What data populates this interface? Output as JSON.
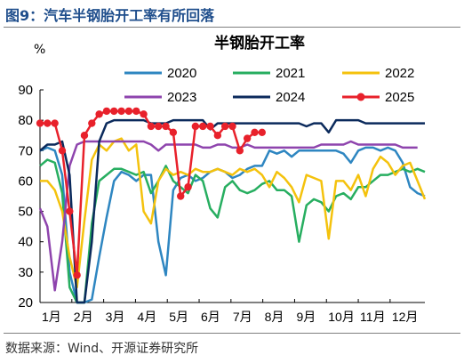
{
  "figure_title": "图9：汽车半钢胎开工率有所回落",
  "source": "数据来源：Wind、开源证券研究所",
  "chart_data": {
    "type": "line",
    "title": "半钢胎开工率",
    "ylabel": "%",
    "ylim": [
      20,
      90
    ],
    "yticks": [
      20,
      30,
      40,
      50,
      60,
      70,
      80,
      90
    ],
    "xlim": [
      1,
      53
    ],
    "xticks": [
      {
        "x": 1,
        "label": "1月"
      },
      {
        "x": 5.3,
        "label": "2月"
      },
      {
        "x": 9.6,
        "label": "3月"
      },
      {
        "x": 13.9,
        "label": "4月"
      },
      {
        "x": 18.2,
        "label": "5月"
      },
      {
        "x": 22.5,
        "label": "6月"
      },
      {
        "x": 26.8,
        "label": "7月"
      },
      {
        "x": 31.1,
        "label": "8月"
      },
      {
        "x": 35.4,
        "label": "9月"
      },
      {
        "x": 39.7,
        "label": "10月"
      },
      {
        "x": 44,
        "label": "11月"
      },
      {
        "x": 48.3,
        "label": "12月"
      }
    ],
    "grid": false,
    "legend_position": "top",
    "series": [
      {
        "name": "2020",
        "color": "#2E86C1",
        "marker": false,
        "x": [
          1,
          2,
          3,
          4,
          5,
          6,
          7,
          8,
          9,
          10,
          11,
          12,
          13,
          14,
          15,
          16,
          17,
          18,
          19,
          20,
          21,
          22,
          23,
          24,
          25,
          26,
          27,
          28,
          29,
          30,
          31,
          32,
          33,
          34,
          35,
          36,
          37,
          38,
          39,
          40,
          41,
          42,
          43,
          44,
          45,
          46,
          47,
          48,
          49,
          50,
          51,
          52,
          53
        ],
        "y": [
          70,
          71,
          70,
          62,
          30,
          20,
          20,
          21,
          35,
          48,
          60,
          63,
          62,
          60,
          62,
          62,
          40,
          29,
          57,
          61,
          62,
          60,
          61,
          63,
          64,
          63,
          61,
          62,
          64,
          65,
          65,
          70,
          69,
          70,
          68,
          70,
          70,
          70,
          70,
          70,
          70,
          69,
          66,
          70,
          71,
          71,
          70,
          71,
          70,
          66,
          58,
          56,
          55
        ]
      },
      {
        "name": "2021",
        "color": "#27AE60",
        "marker": false,
        "x": [
          1,
          2,
          3,
          4,
          5,
          6,
          7,
          8,
          9,
          10,
          11,
          12,
          13,
          14,
          15,
          16,
          17,
          18,
          19,
          20,
          21,
          22,
          23,
          24,
          25,
          26,
          27,
          28,
          29,
          30,
          31,
          32,
          33,
          34,
          35,
          36,
          37,
          38,
          39,
          40,
          41,
          42,
          43,
          44,
          45,
          46,
          47,
          48,
          49,
          50,
          51,
          52,
          53
        ],
        "y": [
          65,
          67,
          66,
          56,
          25,
          20,
          20,
          46,
          60,
          62,
          64,
          64,
          63,
          62,
          63,
          56,
          60,
          65,
          60,
          58,
          56,
          62,
          60,
          51,
          48,
          58,
          60,
          57,
          56,
          57,
          59,
          60,
          57,
          57,
          55,
          40,
          52,
          54,
          53,
          50,
          55,
          56,
          54,
          58,
          58,
          60,
          62,
          62,
          63,
          64,
          63,
          64,
          63
        ]
      },
      {
        "name": "2022",
        "color": "#F4C20D",
        "marker": false,
        "x": [
          1,
          2,
          3,
          4,
          5,
          6,
          7,
          8,
          9,
          10,
          11,
          12,
          13,
          14,
          15,
          16,
          17,
          18,
          19,
          20,
          21,
          22,
          23,
          24,
          25,
          26,
          27,
          28,
          29,
          30,
          31,
          32,
          33,
          34,
          35,
          36,
          37,
          38,
          39,
          40,
          41,
          42,
          43,
          44,
          45,
          46,
          47,
          48,
          49,
          50,
          51,
          52,
          53
        ],
        "y": [
          60,
          60,
          57,
          50,
          35,
          25,
          47,
          67,
          72,
          70,
          73,
          74,
          70,
          72,
          50,
          46,
          60,
          64,
          62,
          63,
          62,
          64,
          63,
          63,
          64,
          63,
          62,
          64,
          63,
          64,
          62,
          58,
          63,
          61,
          58,
          53,
          62,
          61,
          60,
          41,
          60,
          60,
          57,
          62,
          55,
          64,
          68,
          66,
          62,
          65,
          66,
          60,
          54
        ]
      },
      {
        "name": "2023",
        "color": "#8E44AD",
        "marker": false,
        "x": [
          1,
          2,
          3,
          4,
          5,
          6,
          7,
          8,
          9,
          10,
          11,
          12,
          13,
          14,
          15,
          16,
          17,
          18,
          19,
          20,
          21,
          22,
          23,
          24,
          25,
          26,
          27,
          28,
          29,
          30,
          31,
          32,
          33,
          34,
          35,
          36,
          37,
          38,
          39,
          40,
          41,
          42,
          43,
          44,
          45,
          46,
          47,
          48,
          49,
          50,
          51,
          52
        ],
        "y": [
          51,
          45,
          24,
          40,
          65,
          72,
          73,
          73,
          73,
          73,
          73,
          73,
          73,
          73,
          73,
          72,
          70,
          72,
          72,
          72,
          72,
          72,
          71,
          71,
          72,
          72,
          71,
          71,
          72,
          71,
          71,
          71,
          71,
          71,
          71,
          71,
          71,
          71,
          72,
          72,
          72,
          72,
          73,
          72,
          72,
          72,
          72,
          72,
          72,
          71,
          71,
          71
        ]
      },
      {
        "name": "2024",
        "color": "#0B2A5C",
        "marker": false,
        "x": [
          1,
          2,
          3,
          4,
          5,
          6,
          7,
          8,
          9,
          10,
          11,
          12,
          13,
          14,
          15,
          16,
          17,
          18,
          19,
          20,
          21,
          22,
          23,
          24,
          25,
          26,
          27,
          28,
          29,
          30,
          31,
          32,
          33,
          34,
          35,
          36,
          37,
          38,
          39,
          40,
          41,
          42,
          43,
          44,
          45,
          46,
          47,
          48,
          49,
          50,
          51,
          52,
          53
        ],
        "y": [
          70,
          72,
          72,
          73,
          62,
          20,
          20,
          40,
          73,
          79,
          80,
          80,
          80,
          80,
          80,
          79,
          79,
          79,
          80,
          80,
          80,
          80,
          80,
          77,
          79,
          79,
          79,
          79,
          79,
          79,
          79,
          79,
          79,
          79,
          79,
          79,
          78,
          79,
          79,
          76,
          80,
          80,
          80,
          80,
          79,
          79,
          79,
          79,
          79,
          79,
          79,
          79,
          79
        ]
      },
      {
        "name": "2025",
        "color": "#E8212B",
        "marker": true,
        "x": [
          1,
          2,
          3,
          4,
          5,
          6,
          7,
          8,
          9,
          10,
          11,
          12,
          13,
          14,
          15,
          16,
          17,
          18,
          19,
          20,
          21,
          22,
          23,
          24,
          25,
          26,
          27,
          28,
          29,
          30,
          31
        ],
        "y": [
          79,
          79,
          79,
          70,
          50,
          29,
          75,
          79,
          82,
          83,
          83,
          83,
          83,
          83,
          82,
          78,
          78,
          78,
          76,
          55,
          58,
          78,
          78,
          78,
          75,
          78,
          78,
          70,
          74,
          76,
          76
        ]
      }
    ]
  }
}
